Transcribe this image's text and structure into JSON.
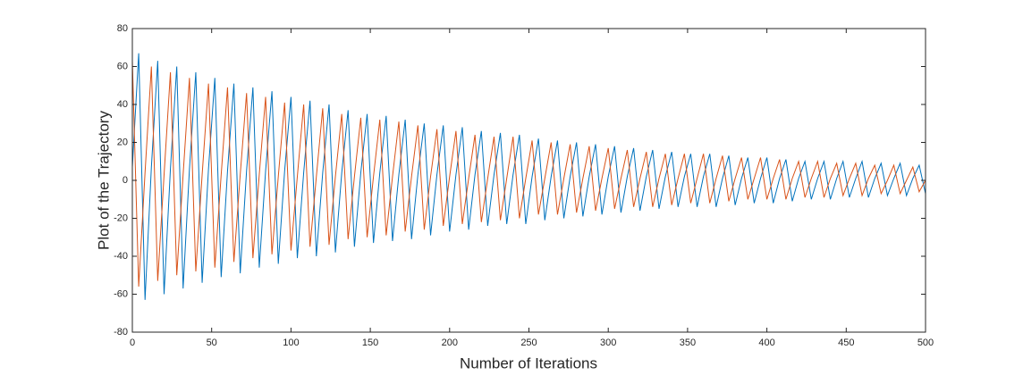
{
  "chart_data": {
    "type": "line",
    "xlabel": "Number of Iterations",
    "ylabel": "Plot of the Trajectory",
    "x": [
      0,
      4,
      8,
      12,
      16,
      20,
      24,
      28,
      32,
      36,
      40,
      44,
      48,
      52,
      56,
      60,
      64,
      68,
      72,
      76,
      80,
      84,
      88,
      92,
      96,
      100,
      104,
      108,
      112,
      116,
      120,
      124,
      128,
      132,
      136,
      140,
      144,
      148,
      152,
      156,
      160,
      164,
      168,
      172,
      176,
      180,
      184,
      188,
      192,
      196,
      200,
      204,
      208,
      212,
      216,
      220,
      224,
      228,
      232,
      236,
      240,
      244,
      248,
      252,
      256,
      260,
      264,
      268,
      272,
      276,
      280,
      284,
      288,
      292,
      296,
      300,
      304,
      308,
      312,
      316,
      320,
      324,
      328,
      332,
      336,
      340,
      344,
      348,
      352,
      356,
      360,
      364,
      368,
      372,
      376,
      380,
      384,
      388,
      392,
      396,
      400,
      404,
      408,
      412,
      416,
      420,
      424,
      428,
      432,
      436,
      440,
      444,
      448,
      452,
      456,
      460,
      464,
      468,
      472,
      476,
      480,
      484,
      488,
      492,
      496,
      500
    ],
    "series": [
      {
        "color": "#0072bd",
        "values": [
          7,
          67,
          -63,
          7,
          63,
          -60,
          6,
          60,
          -57,
          6,
          57,
          -54,
          6,
          54,
          -51,
          5,
          51,
          -49,
          5,
          49,
          -46,
          5,
          47,
          -44,
          5,
          44,
          -41,
          4,
          42,
          -40,
          4,
          40,
          -38,
          4,
          37,
          -35,
          4,
          35,
          -33,
          4,
          34,
          -32,
          3,
          32,
          -31,
          3,
          30,
          -29,
          3,
          29,
          -27,
          3,
          28,
          -26,
          3,
          26,
          -24,
          3,
          25,
          -23,
          3,
          24,
          -23,
          2,
          22,
          -21,
          2,
          21,
          -20,
          2,
          20,
          -19,
          2,
          19,
          -18,
          2,
          18,
          -17,
          2,
          17,
          -16,
          2,
          16,
          -15,
          2,
          15,
          -14,
          2,
          14,
          -14,
          2,
          14,
          -14,
          1,
          13,
          -13,
          1,
          12,
          -12,
          1,
          12,
          -12,
          1,
          11,
          -11,
          1,
          10,
          -10,
          1,
          10,
          -10,
          1,
          10,
          -9,
          1,
          10,
          -9,
          1,
          9,
          -8,
          1,
          9,
          -8,
          1,
          8,
          -7
        ]
      },
      {
        "color": "#d95319",
        "values": [
          63,
          -56,
          4,
          60,
          -53,
          3,
          57,
          -50,
          3,
          54,
          -48,
          3,
          51,
          -46,
          3,
          49,
          -43,
          3,
          46,
          -41,
          3,
          44,
          -39,
          2,
          41,
          -37,
          2,
          40,
          -35,
          2,
          38,
          -34,
          2,
          35,
          -31,
          2,
          33,
          -30,
          2,
          32,
          -29,
          2,
          31,
          -27,
          2,
          29,
          -26,
          2,
          27,
          -24,
          2,
          26,
          -23,
          1,
          24,
          -22,
          1,
          23,
          -21,
          1,
          23,
          -20,
          1,
          21,
          -18,
          1,
          20,
          -18,
          1,
          19,
          -17,
          1,
          18,
          -16,
          1,
          17,
          -15,
          1,
          16,
          -14,
          1,
          15,
          -14,
          1,
          14,
          -13,
          1,
          14,
          -12,
          1,
          14,
          -12,
          1,
          13,
          -11,
          1,
          12,
          -10,
          1,
          12,
          -10,
          1,
          11,
          -10,
          1,
          10,
          -9,
          1,
          10,
          -9,
          1,
          9,
          -8,
          1,
          9,
          -8,
          1,
          8,
          -7,
          0,
          8,
          -7,
          0,
          7,
          -6,
          0
        ]
      }
    ],
    "xlim": [
      0,
      500
    ],
    "xticks": [
      0,
      50,
      100,
      150,
      200,
      250,
      300,
      350,
      400,
      450,
      500
    ],
    "ylim": [
      -80,
      80
    ],
    "yticks": [
      -80,
      -60,
      -40,
      -20,
      0,
      20,
      40,
      60,
      80
    ]
  }
}
